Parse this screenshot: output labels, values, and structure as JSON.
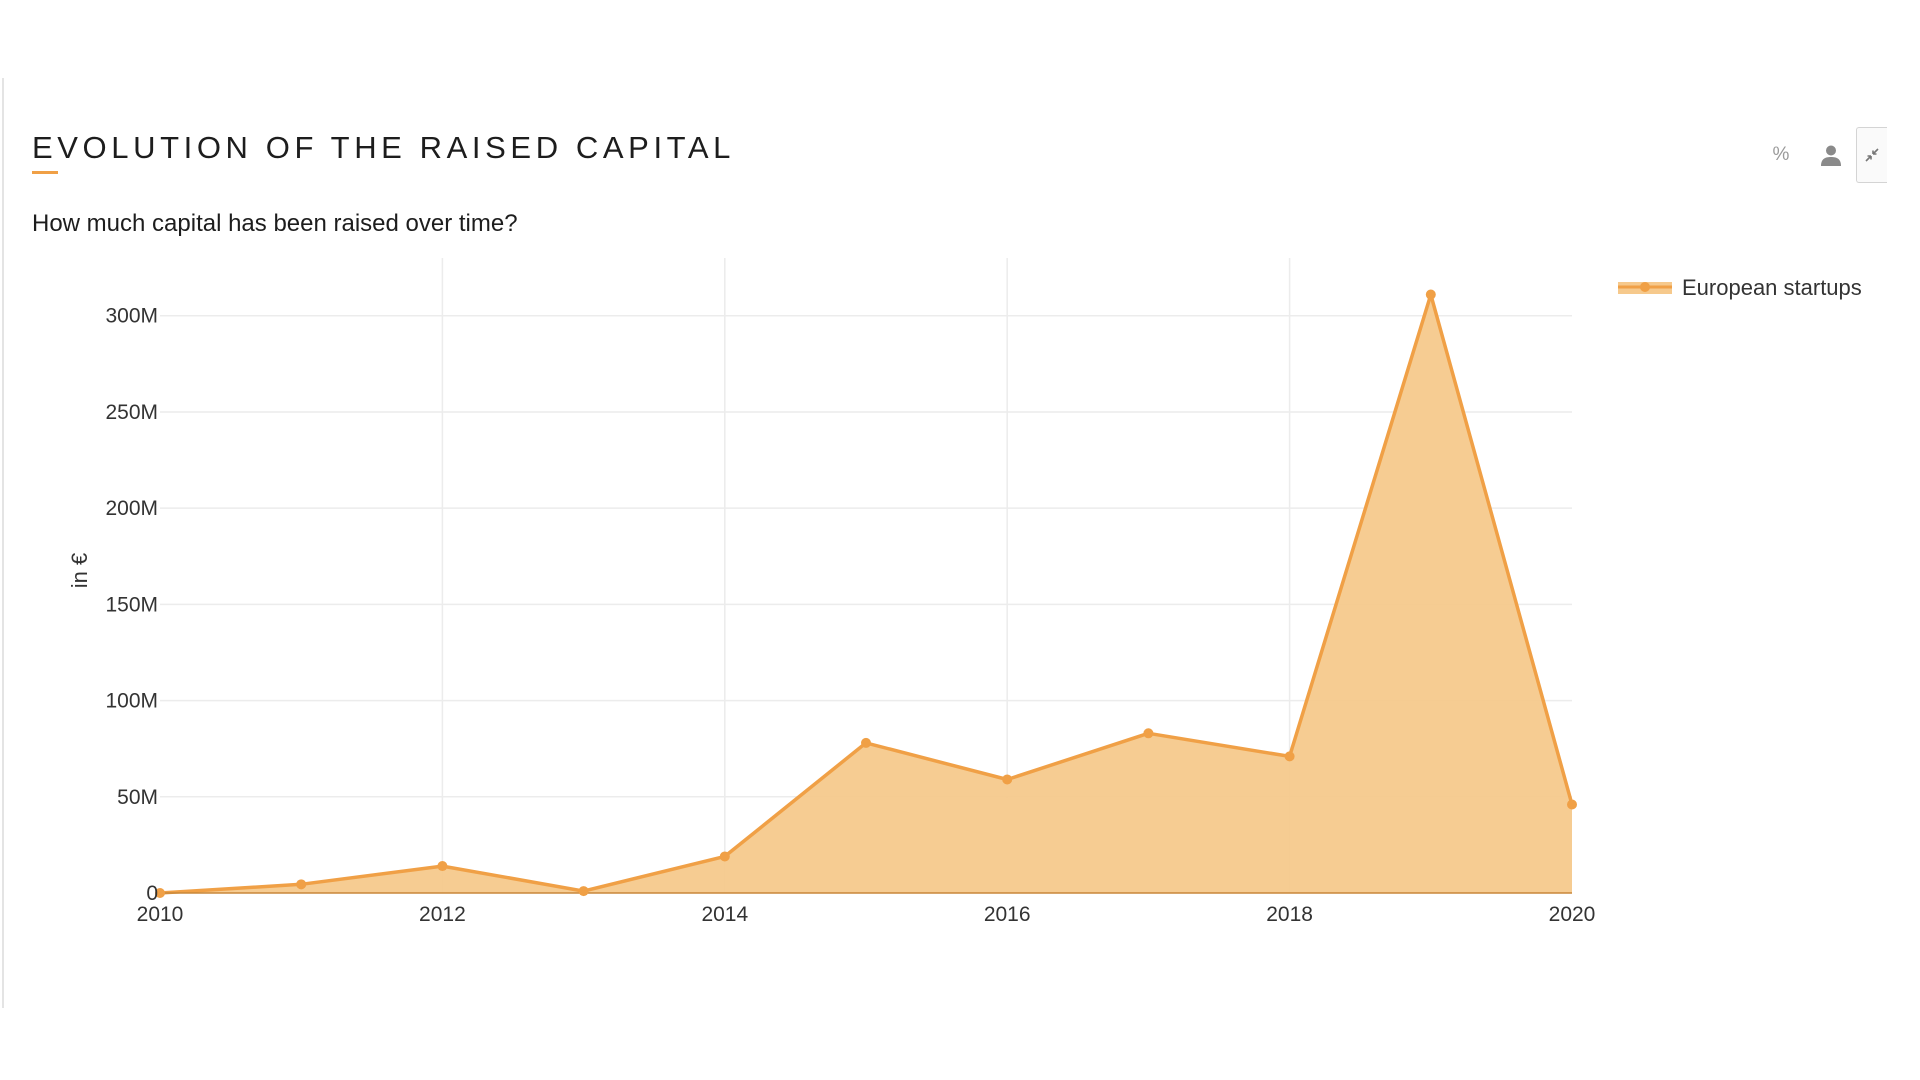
{
  "header": {
    "title": "EVOLUTION OF THE RAISED CAPITAL",
    "subtitle": "How much capital has been raised over time?"
  },
  "toolbar": {
    "percent_label": "%",
    "icons": [
      "percent-icon",
      "person-icon",
      "compress-icon"
    ]
  },
  "colors": {
    "accent": "#f0a046",
    "fill": "#f6c98c",
    "grid": "#ececec"
  },
  "chart_data": {
    "type": "area",
    "ylabel": "in €",
    "xlim": [
      2010,
      2020
    ],
    "ylim": [
      0,
      330000000
    ],
    "x_ticks": [
      2010,
      2012,
      2014,
      2016,
      2018,
      2020
    ],
    "y_ticks": [
      0,
      50000000,
      100000000,
      150000000,
      200000000,
      250000000,
      300000000
    ],
    "y_tick_labels": [
      "0",
      "50M",
      "100M",
      "150M",
      "200M",
      "250M",
      "300M"
    ],
    "grid": true,
    "legend_position": "top-right",
    "series": [
      {
        "name": "European startups",
        "x": [
          2010,
          2011,
          2012,
          2013,
          2014,
          2015,
          2016,
          2017,
          2018,
          2019,
          2020
        ],
        "values": [
          0,
          4500000,
          14000000,
          1000000,
          19000000,
          78000000,
          59000000,
          83000000,
          71000000,
          311000000,
          46000000
        ]
      }
    ]
  }
}
